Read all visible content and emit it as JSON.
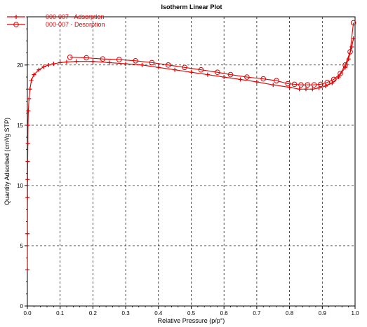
{
  "chart_data": {
    "type": "line",
    "title": "Isotherm Linear Plot",
    "xlabel": "Relative Pressure (p/p°)",
    "ylabel": "Quantity Adsorbed (cm³/g STP)",
    "xlim": [
      0,
      1.0
    ],
    "ylim": [
      0,
      24
    ],
    "xticks": [
      "0.0",
      "0.1",
      "0.2",
      "0.3",
      "0.4",
      "0.5",
      "0.6",
      "0.7",
      "0.8",
      "0.9",
      "1.0"
    ],
    "yticks": [
      "0",
      "5",
      "10",
      "15",
      "20"
    ],
    "grid": true,
    "legend_position": "top-left",
    "colors": {
      "series": "#e00000",
      "grid": "#000000"
    },
    "series": [
      {
        "name": "000-007 - Adsorption",
        "marker": "plus",
        "x": [
          0.0002,
          0.0003,
          0.0005,
          0.0007,
          0.001,
          0.0015,
          0.002,
          0.003,
          0.005,
          0.008,
          0.012,
          0.02,
          0.035,
          0.05,
          0.065,
          0.08,
          0.1,
          0.12,
          0.15,
          0.2,
          0.25,
          0.3,
          0.35,
          0.4,
          0.45,
          0.5,
          0.55,
          0.6,
          0.65,
          0.7,
          0.75,
          0.8,
          0.83,
          0.85,
          0.87,
          0.89,
          0.91,
          0.93,
          0.95,
          0.97,
          0.98,
          0.99,
          0.995
        ],
        "y": [
          3.0,
          6.0,
          9.0,
          10.5,
          12.0,
          13.5,
          15.0,
          16.2,
          17.2,
          18.0,
          18.7,
          19.2,
          19.6,
          19.85,
          20.0,
          20.1,
          20.2,
          20.25,
          20.3,
          20.3,
          20.2,
          20.1,
          20.0,
          19.8,
          19.6,
          19.4,
          19.2,
          19.0,
          18.8,
          18.6,
          18.35,
          18.15,
          18.0,
          18.0,
          18.0,
          18.1,
          18.25,
          18.5,
          19.0,
          19.8,
          20.5,
          21.5,
          22.2
        ]
      },
      {
        "name": "000-007 - Desorption",
        "marker": "circle",
        "x": [
          0.995,
          0.985,
          0.97,
          0.955,
          0.935,
          0.915,
          0.895,
          0.875,
          0.855,
          0.835,
          0.815,
          0.795,
          0.76,
          0.72,
          0.67,
          0.62,
          0.58,
          0.53,
          0.48,
          0.43,
          0.38,
          0.33,
          0.28,
          0.23,
          0.18,
          0.13
        ],
        "y": [
          23.5,
          21.1,
          20.0,
          19.3,
          18.8,
          18.55,
          18.4,
          18.35,
          18.35,
          18.35,
          18.4,
          18.45,
          18.7,
          18.85,
          19.0,
          19.2,
          19.4,
          19.6,
          19.8,
          20.0,
          20.2,
          20.35,
          20.45,
          20.5,
          20.6,
          20.65
        ]
      }
    ]
  }
}
